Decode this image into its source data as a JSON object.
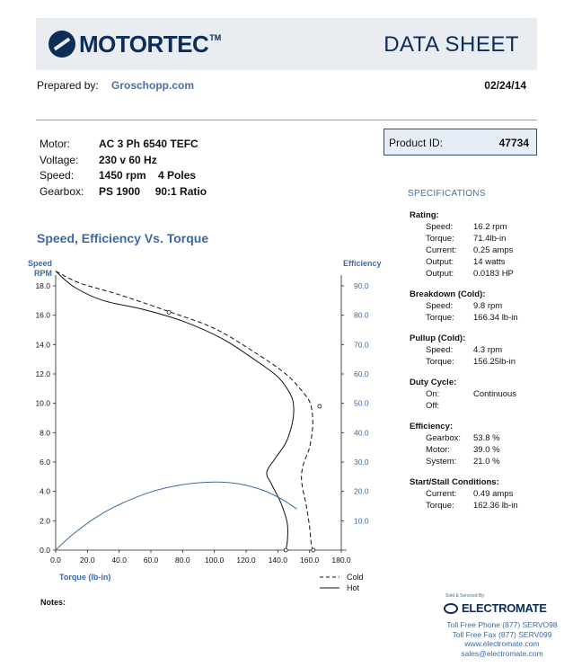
{
  "header": {
    "brand": "MOTORTEC",
    "brand_tm": "TM",
    "doc_title": "DATA SHEET"
  },
  "prepared": {
    "label": "Prepared by:",
    "name": "Groschopp.com",
    "date": "02/24/14"
  },
  "motor": [
    {
      "label": "Motor:",
      "value": "AC 3 Ph  6540 TEFC"
    },
    {
      "label": "Voltage:",
      "value": "230 v 60 Hz"
    },
    {
      "label": "Speed:",
      "value": "1450 rpm    4 Poles"
    },
    {
      "label": "Gearbox:",
      "value": "PS 1900     90:1 Ratio"
    }
  ],
  "product": {
    "label": "Product ID:",
    "value": "47734"
  },
  "specifications": {
    "title": "SPECIFICATIONS",
    "groups": [
      {
        "title": "Rating:",
        "rows": [
          {
            "k": "Speed:",
            "v": "16.2 rpm"
          },
          {
            "k": "Torque:",
            "v": "71.4lb-in"
          },
          {
            "k": "Current:",
            "v": "0.25 amps"
          },
          {
            "k": "Output:",
            "v": "14 watts"
          },
          {
            "k": "Output:",
            "v": "0.0183 HP"
          }
        ]
      },
      {
        "title": "Breakdown (Cold):",
        "rows": [
          {
            "k": "Speed:",
            "v": "9.8 rpm"
          },
          {
            "k": "Torque:",
            "v": "166.34 lb-in"
          }
        ]
      },
      {
        "title": "Pullup (Cold):",
        "rows": [
          {
            "k": "Speed:",
            "v": "4.3 rpm"
          },
          {
            "k": "Torque:",
            "v": "156.25lb-in"
          }
        ]
      },
      {
        "title": "Duty Cycle:",
        "rows": [
          {
            "k": "On:",
            "v": "Continuous"
          },
          {
            "k": "Off:",
            "v": ""
          }
        ]
      },
      {
        "title": "Efficiency:",
        "rows": [
          {
            "k": "Gearbox:",
            "v": "53.8 %"
          },
          {
            "k": "Motor:",
            "v": "39.0 %"
          },
          {
            "k": "System:",
            "v": "21.0 %"
          }
        ]
      },
      {
        "title": "Start/Stall Conditions:",
        "rows": [
          {
            "k": "Current:",
            "v": "0.49 amps"
          },
          {
            "k": "Torque:",
            "v": "162.36 lb-in"
          }
        ]
      }
    ]
  },
  "chart_data": {
    "type": "line",
    "title": "Speed, Efficiency Vs. Torque",
    "xlabel": "Torque  (lb-in)",
    "ylabel_left": [
      "Speed",
      "RPM"
    ],
    "ylabel_right": "Efficiency",
    "xlim": [
      0,
      180
    ],
    "ylim_left": [
      0,
      18
    ],
    "ylim_right": [
      0,
      90
    ],
    "x_ticks": [
      "0.0",
      "20.0",
      "40.0",
      "60.0",
      "80.0",
      "100.0",
      "120.0",
      "140.0",
      "160.0",
      "180.0"
    ],
    "y_left_ticks": [
      "0.0",
      "2.0",
      "4.0",
      "6.0",
      "8.0",
      "10.0",
      "12.0",
      "14.0",
      "16.0",
      "18.0"
    ],
    "y_right_ticks": [
      "10.0",
      "20.0",
      "30.0",
      "40.0",
      "50.0",
      "60.0",
      "70.0",
      "80.0",
      "90.0"
    ],
    "grid": false,
    "legend_position": "bottom-right",
    "series": [
      {
        "name": "Cold",
        "style": "dashed",
        "axis": "left",
        "points": [
          [
            0,
            19.0
          ],
          [
            15,
            18.2
          ],
          [
            40,
            17.4
          ],
          [
            70,
            16.3
          ],
          [
            100,
            15.1
          ],
          [
            125,
            13.5
          ],
          [
            145,
            12.0
          ],
          [
            157,
            10.6
          ],
          [
            161,
            9.8
          ],
          [
            162,
            8.5
          ],
          [
            160,
            7.0
          ],
          [
            156,
            5.8
          ],
          [
            155,
            4.7
          ],
          [
            158,
            3.0
          ],
          [
            160,
            1.6
          ],
          [
            161,
            0.5
          ],
          [
            162,
            0
          ]
        ]
      },
      {
        "name": "Hot",
        "style": "solid",
        "axis": "left",
        "points": [
          [
            0,
            19.0
          ],
          [
            12,
            17.9
          ],
          [
            30,
            17.0
          ],
          [
            55,
            16.4
          ],
          [
            80,
            15.6
          ],
          [
            105,
            14.4
          ],
          [
            125,
            13.0
          ],
          [
            140,
            11.8
          ],
          [
            148,
            10.6
          ],
          [
            150,
            9.7
          ],
          [
            149,
            8.6
          ],
          [
            145,
            7.3
          ],
          [
            138,
            6.2
          ],
          [
            133,
            5.3
          ],
          [
            136,
            4.5
          ],
          [
            142,
            3.2
          ],
          [
            146,
            1.8
          ],
          [
            146,
            0.6
          ],
          [
            145,
            0
          ]
        ]
      },
      {
        "name": "",
        "style": "solid",
        "axis": "right",
        "color": "#3b69a4",
        "points": [
          [
            0,
            0
          ],
          [
            10,
            5.0
          ],
          [
            25,
            11.0
          ],
          [
            40,
            15.5
          ],
          [
            60,
            19.8
          ],
          [
            80,
            22.3
          ],
          [
            100,
            23.2
          ],
          [
            115,
            22.6
          ],
          [
            130,
            20.5
          ],
          [
            142,
            17.5
          ],
          [
            152,
            14.0
          ]
        ]
      }
    ],
    "markers_left": [
      [
        71.4,
        16.2
      ],
      [
        166.34,
        9.8
      ],
      [
        145,
        0
      ],
      [
        162.36,
        0
      ]
    ]
  },
  "notes_label": "Notes:",
  "distributor": {
    "sold_by": "Sold & Serviced By:",
    "name": "ELECTROMATE",
    "contact": [
      "Toll Free Phone  (877) SERVO98",
      "Toll Free Fax  (877) SERV099",
      "www.electromate.com",
      "sales@electromate.com"
    ]
  },
  "colors": {
    "brand": "#0b2d57",
    "accent": "#3b69a4"
  }
}
